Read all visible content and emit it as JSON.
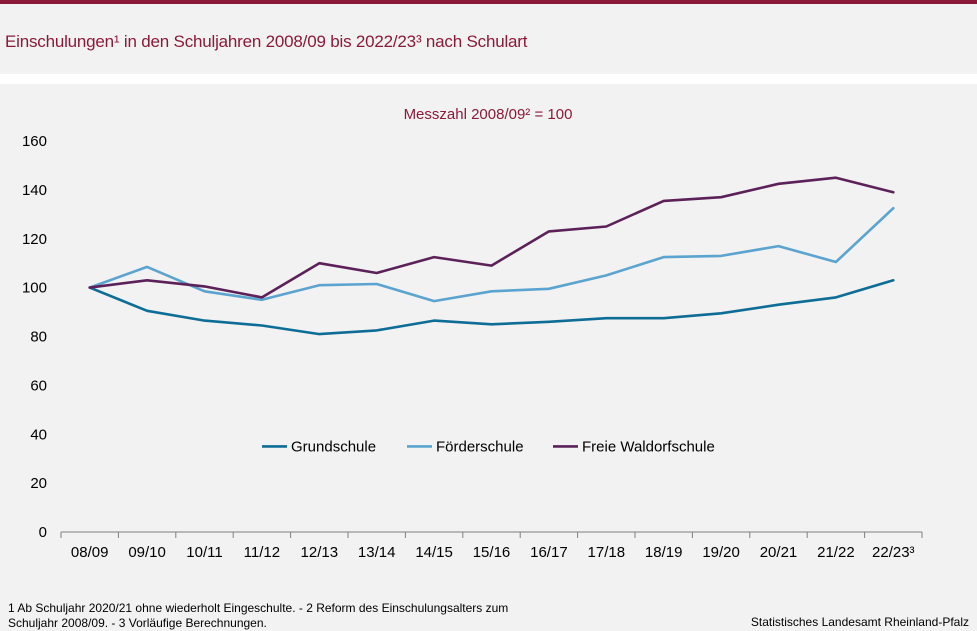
{
  "header": {
    "title": "Einschulungen¹ in den Schuljahren 2008/09 bis 2022/23³ nach Schulart"
  },
  "footer": {
    "note_line1": "1 Ab Schuljahr 2020/21 ohne wiederholt Eingeschulte. - 2 Reform des Einschulungsalters zum",
    "note_line2": "Schuljahr 2008/09. - 3 Vorläufige Berechnungen.",
    "source": "Statistisches Landesamt Rheinland-Pfalz"
  },
  "chart_data": {
    "type": "line",
    "subtitle": "Messzahl 2008/09² = 100",
    "categories": [
      "08/09",
      "09/10",
      "10/11",
      "11/12",
      "12/13",
      "13/14",
      "14/15",
      "15/16",
      "16/17",
      "17/18",
      "18/19",
      "19/20",
      "20/21",
      "21/22",
      "22/23³"
    ],
    "ylim": [
      0,
      160
    ],
    "yticks": [
      0,
      20,
      40,
      60,
      80,
      100,
      120,
      140,
      160
    ],
    "grid": false,
    "legend_position": "center",
    "series": [
      {
        "name": "Grundschule",
        "color": "#0e6d96",
        "values": [
          100,
          90.5,
          86.5,
          84.5,
          81,
          82.5,
          86.5,
          85,
          86,
          87.5,
          87.5,
          89.5,
          93,
          96,
          103
        ]
      },
      {
        "name": "Förderschule",
        "color": "#5ba4cf",
        "values": [
          100,
          108.5,
          98.5,
          95,
          101,
          101.5,
          94.5,
          98.5,
          99.5,
          105,
          112.5,
          113,
          117,
          110.5,
          132.5
        ]
      },
      {
        "name": "Freie Waldorfschule",
        "color": "#5b2158",
        "values": [
          100,
          103,
          100.5,
          96,
          110,
          106,
          112.5,
          109,
          123,
          125,
          135.5,
          137,
          142.5,
          145,
          139
        ]
      }
    ]
  }
}
